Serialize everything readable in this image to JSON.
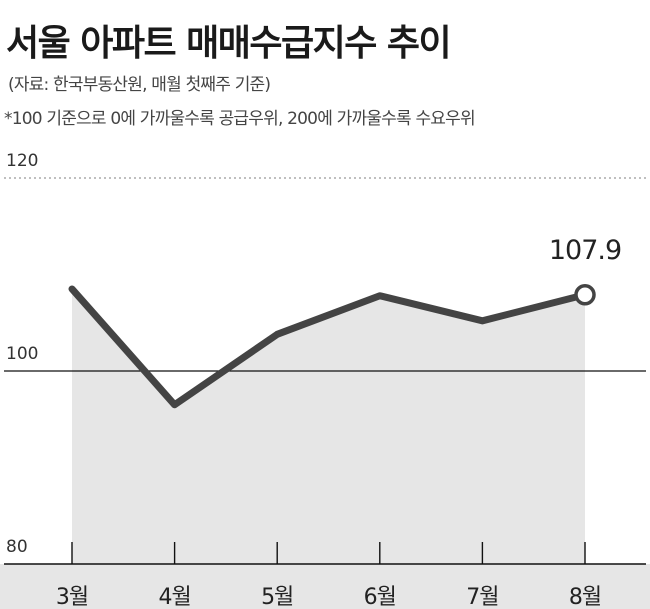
{
  "header": {
    "title": "서울 아파트 매매수급지수 추이",
    "source": "(자료: 한국부동산원, 매월 첫째주 기준)",
    "footnote": "*100 기준으로 0에 가까울수록 공급우위, 200에 가까울수록 수요우위"
  },
  "colors": {
    "line": "#444444",
    "area": "#e6e6e6",
    "axis": "#111111",
    "grid_dotted": "#aaaaaa",
    "axis_band": "#e6e6e6"
  },
  "chart_data": {
    "type": "line",
    "categories": [
      "3월",
      "4월",
      "5월",
      "6월",
      "7월",
      "8월"
    ],
    "series": [
      {
        "values": [
          108.5,
          96.5,
          103.8,
          107.8,
          105.2,
          107.9
        ]
      }
    ],
    "ylim": [
      80,
      120
    ],
    "yticks": [
      "80",
      "100",
      "120"
    ],
    "reference_line": 100,
    "labeled_point": {
      "index": 5,
      "label": "107.9"
    },
    "xlabel": "",
    "ylabel": ""
  }
}
